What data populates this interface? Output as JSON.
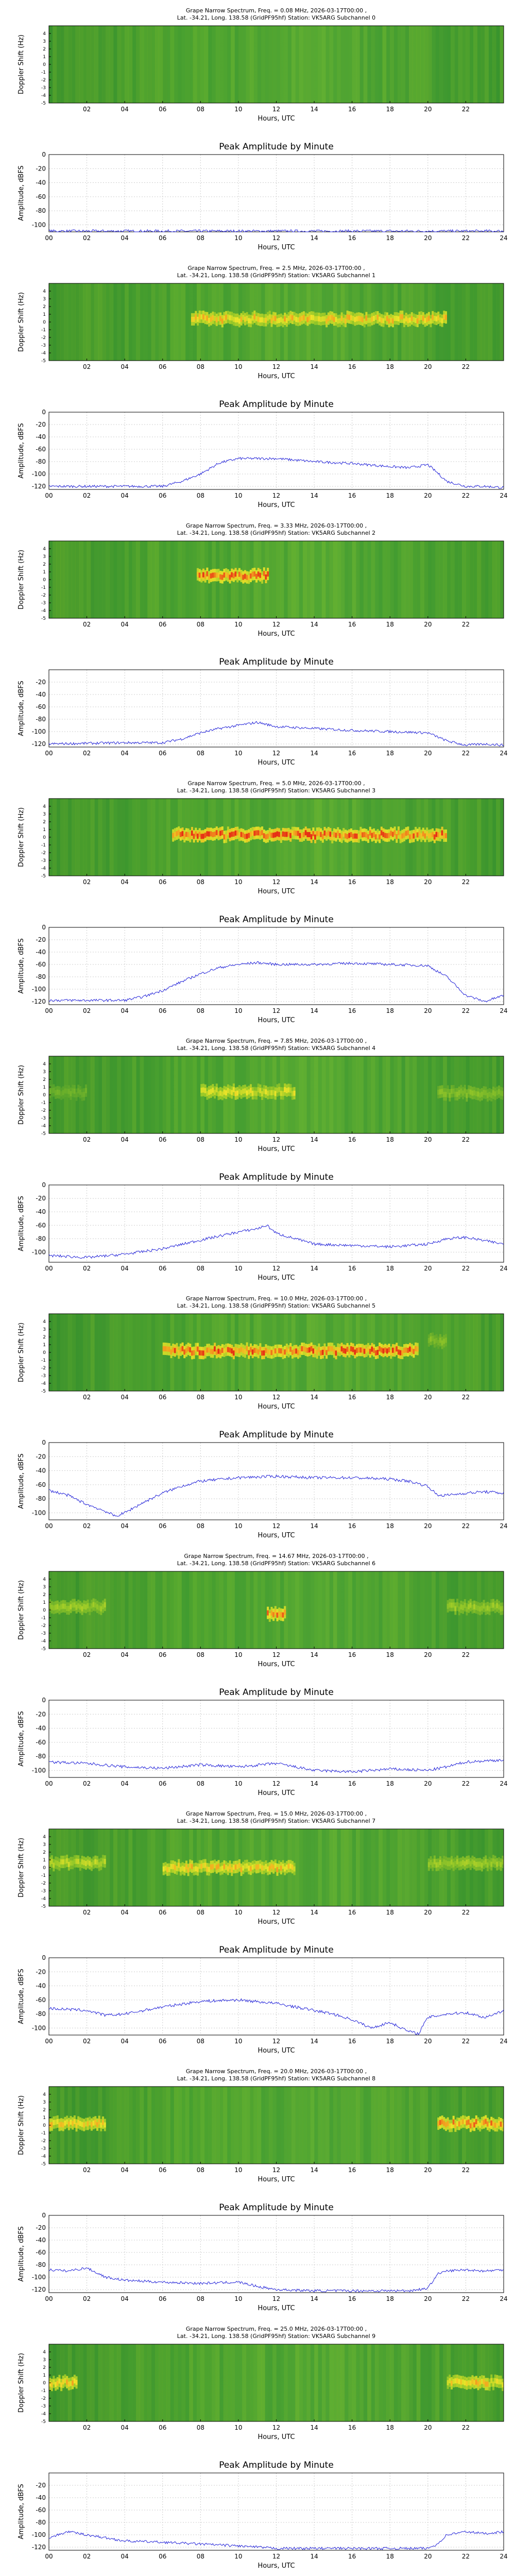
{
  "page": {
    "title_template": "Grape Narrow Spectrum, Freq. = {freq}, 2026-03-17T00:00 ,",
    "station_line_template": "Lat. -34.21, Long. 138.58 (GridPF95hf) Station: VK5ARG Subchannel {sub}",
    "peak_title": "Peak Amplitude by Minute",
    "spectro_ylabel": "Doppler Shift (Hz)",
    "amp_ylabel": "Amplitude, dBFS",
    "xlabel": "Hours, UTC"
  },
  "chart_data": [
    {
      "type": "heatmap",
      "subchannel": "0",
      "freq": "0.08 MHz",
      "xlabel": "Hours, UTC",
      "ylabel": "Doppler Shift (Hz)",
      "xticks": [
        "02",
        "04",
        "06",
        "08",
        "10",
        "12",
        "14",
        "16",
        "18",
        "20",
        "22"
      ],
      "yticks": [
        "4",
        "3",
        "2",
        "1",
        "0",
        "-1",
        "-2",
        "-3",
        "-4",
        "-5"
      ],
      "xlim": [
        0,
        24
      ],
      "ylim": [
        -5,
        5
      ]
    },
    {
      "type": "line",
      "title": "Peak Amplitude by Minute",
      "xlabel": "Hours, UTC",
      "ylabel": "Amplitude, dBFS",
      "xticks": [
        "00",
        "02",
        "04",
        "06",
        "08",
        "10",
        "12",
        "14",
        "16",
        "18",
        "20",
        "22",
        "24"
      ],
      "yticks": [
        "0",
        "-20",
        "-40",
        "-60",
        "-80",
        "-100"
      ],
      "xlim": [
        0,
        24
      ],
      "ylim": [
        -110,
        0
      ],
      "x": [
        0,
        24
      ],
      "y": [
        -109,
        -109
      ]
    },
    {
      "type": "heatmap",
      "subchannel": "1",
      "freq": "2.5 MHz",
      "xlabel": "Hours, UTC",
      "ylabel": "Doppler Shift (Hz)",
      "xticks": [
        "02",
        "04",
        "06",
        "08",
        "10",
        "12",
        "14",
        "16",
        "18",
        "20",
        "22"
      ],
      "yticks": [
        "4",
        "3",
        "2",
        "1",
        "0",
        "-1",
        "-2",
        "-3",
        "-4",
        "-5"
      ],
      "xlim": [
        0,
        24
      ],
      "ylim": [
        -5,
        5
      ]
    },
    {
      "type": "line",
      "title": "Peak Amplitude by Minute",
      "xlabel": "Hours, UTC",
      "ylabel": "Amplitude, dBFS",
      "xticks": [
        "00",
        "02",
        "04",
        "06",
        "08",
        "10",
        "12",
        "14",
        "16",
        "18",
        "20",
        "22",
        "24"
      ],
      "yticks": [
        "0",
        "-20",
        "-40",
        "-60",
        "-80",
        "-100",
        "-120"
      ],
      "xlim": [
        0,
        24
      ],
      "ylim": [
        -125,
        0
      ],
      "x": [
        0,
        6,
        7,
        8,
        9,
        10,
        12,
        14,
        16,
        18,
        19,
        20,
        20.5,
        21,
        22,
        23,
        24
      ],
      "y": [
        -120,
        -120,
        -112,
        -100,
        -82,
        -75,
        -75,
        -80,
        -83,
        -88,
        -90,
        -85,
        -98,
        -112,
        -120,
        -120,
        -122
      ]
    },
    {
      "type": "heatmap",
      "subchannel": "2",
      "freq": "3.33 MHz",
      "xlabel": "Hours, UTC",
      "ylabel": "Doppler Shift (Hz)",
      "xticks": [
        "02",
        "04",
        "06",
        "08",
        "10",
        "12",
        "14",
        "16",
        "18",
        "20",
        "22"
      ],
      "yticks": [
        "4",
        "3",
        "2",
        "1",
        "0",
        "-1",
        "-2",
        "-3",
        "-4",
        "-5"
      ],
      "xlim": [
        0,
        24
      ],
      "ylim": [
        -5,
        5
      ]
    },
    {
      "type": "line",
      "title": "Peak Amplitude by Minute",
      "xlabel": "Hours, UTC",
      "ylabel": "Amplitude, dBFS",
      "xticks": [
        "00",
        "02",
        "04",
        "06",
        "08",
        "10",
        "12",
        "14",
        "16",
        "18",
        "20",
        "22",
        "24"
      ],
      "yticks": [
        "-20",
        "-40",
        "-60",
        "-80",
        "-100",
        "-120"
      ],
      "xlim": [
        0,
        24
      ],
      "ylim": [
        -125,
        0
      ],
      "x": [
        0,
        4,
        6,
        7,
        8,
        9,
        10,
        11,
        12,
        14,
        16,
        18,
        20,
        21,
        22,
        23,
        24
      ],
      "y": [
        -120,
        -118,
        -118,
        -112,
        -102,
        -95,
        -90,
        -85,
        -92,
        -95,
        -98,
        -100,
        -102,
        -115,
        -122,
        -120,
        -122
      ]
    },
    {
      "type": "heatmap",
      "subchannel": "3",
      "freq": "5.0 MHz",
      "xlabel": "Hours, UTC",
      "ylabel": "Doppler Shift (Hz)",
      "xticks": [
        "02",
        "04",
        "06",
        "08",
        "10",
        "12",
        "14",
        "16",
        "18",
        "20",
        "22"
      ],
      "yticks": [
        "4",
        "3",
        "2",
        "1",
        "0",
        "-1",
        "-2",
        "-3",
        "-4",
        "-5"
      ],
      "xlim": [
        0,
        24
      ],
      "ylim": [
        -5,
        5
      ]
    },
    {
      "type": "line",
      "title": "Peak Amplitude by Minute",
      "xlabel": "Hours, UTC",
      "ylabel": "Amplitude, dBFS",
      "xticks": [
        "00",
        "02",
        "04",
        "06",
        "08",
        "10",
        "12",
        "14",
        "16",
        "18",
        "20",
        "22",
        "24"
      ],
      "yticks": [
        "0",
        "-20",
        "-40",
        "-60",
        "-80",
        "-100",
        "-120"
      ],
      "xlim": [
        0,
        24
      ],
      "ylim": [
        -125,
        0
      ],
      "x": [
        0,
        4,
        5,
        6,
        7,
        8,
        9,
        10,
        11,
        12,
        14,
        16,
        18,
        20,
        21,
        22,
        23,
        24
      ],
      "y": [
        -118,
        -118,
        -112,
        -102,
        -88,
        -75,
        -65,
        -60,
        -57,
        -60,
        -60,
        -58,
        -60,
        -62,
        -80,
        -110,
        -120,
        -110
      ]
    },
    {
      "type": "heatmap",
      "subchannel": "4",
      "freq": "7.85 MHz",
      "xlabel": "Hours, UTC",
      "ylabel": "Doppler Shift (Hz)",
      "xticks": [
        "02",
        "04",
        "06",
        "08",
        "10",
        "12",
        "14",
        "16",
        "18",
        "20",
        "22"
      ],
      "yticks": [
        "4",
        "3",
        "2",
        "1",
        "0",
        "-1",
        "-2",
        "-3",
        "-4",
        "-5"
      ],
      "xlim": [
        0,
        24
      ],
      "ylim": [
        -5,
        5
      ]
    },
    {
      "type": "line",
      "title": "Peak Amplitude by Minute",
      "xlabel": "Hours, UTC",
      "ylabel": "Amplitude, dBFS",
      "xticks": [
        "00",
        "02",
        "04",
        "06",
        "08",
        "10",
        "12",
        "14",
        "16",
        "18",
        "20",
        "22",
        "24"
      ],
      "yticks": [
        "0",
        "-20",
        "-40",
        "-60",
        "-80",
        "-100"
      ],
      "xlim": [
        0,
        24
      ],
      "ylim": [
        -115,
        0
      ],
      "x": [
        0,
        2,
        4,
        6,
        8,
        10,
        11,
        11.5,
        12,
        13,
        14,
        16,
        18,
        20,
        21,
        22,
        23,
        24
      ],
      "y": [
        -105,
        -108,
        -103,
        -95,
        -82,
        -70,
        -65,
        -60,
        -72,
        -80,
        -88,
        -90,
        -92,
        -88,
        -80,
        -78,
        -83,
        -88
      ]
    },
    {
      "type": "heatmap",
      "subchannel": "5",
      "freq": "10.0 MHz",
      "xlabel": "Hours, UTC",
      "ylabel": "Doppler Shift (Hz)",
      "xticks": [
        "02",
        "04",
        "06",
        "08",
        "10",
        "12",
        "14",
        "16",
        "18",
        "20",
        "22"
      ],
      "yticks": [
        "4",
        "3",
        "2",
        "1",
        "0",
        "-1",
        "-2",
        "-3",
        "-4",
        "-5"
      ],
      "xlim": [
        0,
        24
      ],
      "ylim": [
        -5,
        5
      ]
    },
    {
      "type": "line",
      "title": "Peak Amplitude by Minute",
      "xlabel": "Hours, UTC",
      "ylabel": "Amplitude, dBFS",
      "xticks": [
        "00",
        "02",
        "04",
        "06",
        "08",
        "10",
        "12",
        "14",
        "16",
        "18",
        "20",
        "22",
        "24"
      ],
      "yticks": [
        "0",
        "-20",
        "-40",
        "-60",
        "-80",
        "-100"
      ],
      "xlim": [
        0,
        24
      ],
      "ylim": [
        -110,
        0
      ],
      "x": [
        0,
        1,
        2,
        3,
        3.5,
        4,
        5,
        6,
        7,
        8,
        10,
        12,
        14,
        16,
        18,
        19,
        20,
        20.5,
        21,
        22,
        23,
        24
      ],
      "y": [
        -68,
        -75,
        -88,
        -98,
        -105,
        -100,
        -85,
        -72,
        -62,
        -55,
        -50,
        -48,
        -50,
        -50,
        -52,
        -55,
        -62,
        -75,
        -75,
        -72,
        -70,
        -72
      ]
    },
    {
      "type": "heatmap",
      "subchannel": "6",
      "freq": "14.67 MHz",
      "xlabel": "Hours, UTC",
      "ylabel": "Doppler Shift (Hz)",
      "xticks": [
        "02",
        "04",
        "06",
        "08",
        "10",
        "12",
        "14",
        "16",
        "18",
        "20",
        "22"
      ],
      "yticks": [
        "4",
        "3",
        "2",
        "1",
        "0",
        "-1",
        "-2",
        "-3",
        "-4",
        "-5"
      ],
      "xlim": [
        0,
        24
      ],
      "ylim": [
        -5,
        5
      ]
    },
    {
      "type": "line",
      "title": "Peak Amplitude by Minute",
      "xlabel": "Hours, UTC",
      "ylabel": "Amplitude, dBFS",
      "xticks": [
        "00",
        "02",
        "04",
        "06",
        "08",
        "10",
        "12",
        "14",
        "16",
        "18",
        "20",
        "22",
        "24"
      ],
      "yticks": [
        "0",
        "-20",
        "-40",
        "-60",
        "-80",
        "-100"
      ],
      "xlim": [
        0,
        24
      ],
      "ylim": [
        -110,
        0
      ],
      "x": [
        0,
        2,
        4,
        6,
        8,
        10,
        12,
        13,
        14,
        16,
        18,
        20,
        21,
        22,
        24
      ],
      "y": [
        -88,
        -90,
        -95,
        -97,
        -92,
        -95,
        -90,
        -95,
        -100,
        -102,
        -98,
        -100,
        -95,
        -88,
        -85
      ]
    },
    {
      "type": "heatmap",
      "subchannel": "7",
      "freq": "15.0 MHz",
      "xlabel": "Hours, UTC",
      "ylabel": "Doppler Shift (Hz)",
      "xticks": [
        "02",
        "04",
        "06",
        "08",
        "10",
        "12",
        "14",
        "16",
        "18",
        "20",
        "22"
      ],
      "yticks": [
        "4",
        "3",
        "2",
        "1",
        "0",
        "-1",
        "-2",
        "-3",
        "-4",
        "-5"
      ],
      "xlim": [
        0,
        24
      ],
      "ylim": [
        -5,
        5
      ]
    },
    {
      "type": "line",
      "title": "Peak Amplitude by Minute",
      "xlabel": "Hours, UTC",
      "ylabel": "Amplitude, dBFS",
      "xticks": [
        "00",
        "02",
        "04",
        "06",
        "08",
        "10",
        "12",
        "14",
        "16",
        "18",
        "20",
        "22",
        "24"
      ],
      "yticks": [
        "0",
        "-20",
        "-40",
        "-60",
        "-80",
        "-100"
      ],
      "xlim": [
        0,
        24
      ],
      "ylim": [
        -110,
        0
      ],
      "x": [
        0,
        2,
        3,
        4,
        6,
        8,
        10,
        12,
        14,
        15,
        16,
        17,
        18,
        19,
        19.5,
        20,
        21,
        22,
        23,
        24
      ],
      "y": [
        -72,
        -75,
        -82,
        -80,
        -70,
        -62,
        -60,
        -65,
        -75,
        -80,
        -88,
        -100,
        -92,
        -105,
        -108,
        -85,
        -80,
        -78,
        -85,
        -75
      ]
    },
    {
      "type": "heatmap",
      "subchannel": "8",
      "freq": "20.0 MHz",
      "xlabel": "Hours, UTC",
      "ylabel": "Doppler Shift (Hz)",
      "xticks": [
        "02",
        "04",
        "06",
        "08",
        "10",
        "12",
        "14",
        "16",
        "18",
        "20",
        "22"
      ],
      "yticks": [
        "4",
        "3",
        "2",
        "1",
        "0",
        "-1",
        "-2",
        "-3",
        "-4",
        "-5"
      ],
      "xlim": [
        0,
        24
      ],
      "ylim": [
        -5,
        5
      ]
    },
    {
      "type": "line",
      "title": "Peak Amplitude by Minute",
      "xlabel": "Hours, UTC",
      "ylabel": "Amplitude, dBFS",
      "xticks": [
        "00",
        "02",
        "04",
        "06",
        "08",
        "10",
        "12",
        "14",
        "16",
        "18",
        "20",
        "22",
        "24"
      ],
      "yticks": [
        "0",
        "-20",
        "-40",
        "-60",
        "-80",
        "-100",
        "-120"
      ],
      "xlim": [
        0,
        24
      ],
      "ylim": [
        -125,
        0
      ],
      "x": [
        0,
        1,
        2,
        3,
        4,
        6,
        8,
        10,
        11,
        12,
        14,
        16,
        18,
        19,
        20,
        20.5,
        21,
        22,
        23,
        24
      ],
      "y": [
        -88,
        -90,
        -85,
        -100,
        -105,
        -108,
        -110,
        -108,
        -115,
        -120,
        -122,
        -122,
        -122,
        -122,
        -118,
        -95,
        -90,
        -88,
        -90,
        -88
      ]
    },
    {
      "type": "heatmap",
      "subchannel": "9",
      "freq": "25.0 MHz",
      "xlabel": "Hours, UTC",
      "ylabel": "Doppler Shift (Hz)",
      "xticks": [
        "02",
        "04",
        "06",
        "08",
        "10",
        "12",
        "14",
        "16",
        "18",
        "20",
        "22"
      ],
      "yticks": [
        "4",
        "3",
        "2",
        "1",
        "0",
        "-1",
        "-2",
        "-3",
        "-4",
        "-5"
      ],
      "xlim": [
        0,
        24
      ],
      "ylim": [
        -5,
        5
      ]
    },
    {
      "type": "line",
      "title": "Peak Amplitude by Minute",
      "xlabel": "Hours, UTC",
      "ylabel": "Amplitude, dBFS",
      "xticks": [
        "00",
        "02",
        "04",
        "06",
        "08",
        "10",
        "12",
        "14",
        "16",
        "18",
        "20",
        "22",
        "24"
      ],
      "yticks": [
        "-20",
        "-40",
        "-60",
        "-80",
        "-100",
        "-120"
      ],
      "xlim": [
        0,
        24
      ],
      "ylim": [
        -125,
        0
      ],
      "x": [
        0,
        1,
        2,
        3,
        4,
        6,
        8,
        10,
        11,
        12,
        14,
        16,
        18,
        20,
        20.5,
        21,
        22,
        23,
        24
      ],
      "y": [
        -105,
        -95,
        -100,
        -105,
        -110,
        -112,
        -115,
        -118,
        -120,
        -122,
        -122,
        -122,
        -122,
        -122,
        -115,
        -100,
        -95,
        -98,
        -95
      ]
    }
  ]
}
